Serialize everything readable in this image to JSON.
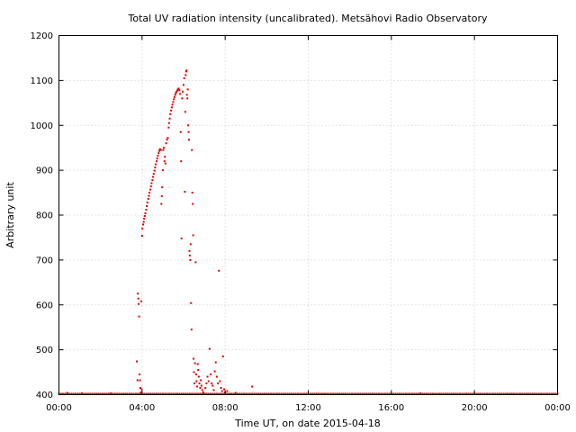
{
  "chart_data": {
    "type": "scatter",
    "title": "Total UV radiation intensity (uncalibrated). Metsähovi Radio Observatory",
    "xlabel": "Time UT, on date 2015-04-18",
    "ylabel": "Arbitrary unit",
    "xlim": [
      0,
      24
    ],
    "ylim": [
      400,
      1200
    ],
    "x_ticks": [
      0,
      4,
      8,
      12,
      16,
      20,
      24
    ],
    "x_tick_labels": [
      "00:00",
      "04:00",
      "08:00",
      "12:00",
      "16:00",
      "20:00",
      "00:00"
    ],
    "y_ticks": [
      400,
      500,
      600,
      700,
      800,
      900,
      1000,
      1100,
      1200
    ],
    "y_tick_labels": [
      "400",
      "500",
      "600",
      "700",
      "800",
      "900",
      "1000",
      "1100",
      "1200"
    ],
    "grid": true,
    "marker_color": "#e00000",
    "baseline": {
      "x_start": 0,
      "x_end": 24,
      "step": 0.1,
      "y": 401
    },
    "points": [
      [
        0.4,
        404
      ],
      [
        1.1,
        403
      ],
      [
        1.9,
        401
      ],
      [
        2.5,
        403
      ],
      [
        3.2,
        402
      ],
      [
        3.75,
        474
      ],
      [
        3.78,
        432
      ],
      [
        3.8,
        625
      ],
      [
        3.82,
        614
      ],
      [
        3.84,
        602
      ],
      [
        3.86,
        574
      ],
      [
        3.88,
        445
      ],
      [
        3.9,
        432
      ],
      [
        3.92,
        415
      ],
      [
        3.94,
        405
      ],
      [
        3.96,
        608
      ],
      [
        3.98,
        412
      ],
      [
        4.0,
        754
      ],
      [
        4.02,
        770
      ],
      [
        4.05,
        779
      ],
      [
        4.08,
        785
      ],
      [
        4.1,
        792
      ],
      [
        4.13,
        798
      ],
      [
        4.16,
        804
      ],
      [
        4.2,
        812
      ],
      [
        4.23,
        820
      ],
      [
        4.26,
        828
      ],
      [
        4.3,
        836
      ],
      [
        4.33,
        843
      ],
      [
        4.36,
        850
      ],
      [
        4.4,
        857
      ],
      [
        4.43,
        864
      ],
      [
        4.46,
        871
      ],
      [
        4.5,
        878
      ],
      [
        4.53,
        885
      ],
      [
        4.56,
        892
      ],
      [
        4.6,
        899
      ],
      [
        4.63,
        906
      ],
      [
        4.66,
        913
      ],
      [
        4.7,
        920
      ],
      [
        4.73,
        926
      ],
      [
        4.76,
        932
      ],
      [
        4.8,
        938
      ],
      [
        4.83,
        943
      ],
      [
        4.86,
        947
      ],
      [
        4.9,
        945
      ],
      [
        4.93,
        825
      ],
      [
        4.95,
        842
      ],
      [
        4.97,
        862
      ],
      [
        5.0,
        900
      ],
      [
        5.02,
        945
      ],
      [
        5.05,
        950
      ],
      [
        5.08,
        920
      ],
      [
        5.1,
        930
      ],
      [
        5.13,
        915
      ],
      [
        5.16,
        960
      ],
      [
        5.2,
        968
      ],
      [
        5.24,
        972
      ],
      [
        5.28,
        995
      ],
      [
        5.3,
        1005
      ],
      [
        5.33,
        1015
      ],
      [
        5.36,
        1025
      ],
      [
        5.4,
        1033
      ],
      [
        5.43,
        1040
      ],
      [
        5.46,
        1046
      ],
      [
        5.5,
        1052
      ],
      [
        5.53,
        1058
      ],
      [
        5.56,
        1063
      ],
      [
        5.6,
        1068
      ],
      [
        5.63,
        1072
      ],
      [
        5.66,
        1075
      ],
      [
        5.7,
        1078
      ],
      [
        5.73,
        1080
      ],
      [
        5.76,
        1082
      ],
      [
        5.8,
        1078
      ],
      [
        5.83,
        1070
      ],
      [
        5.86,
        985
      ],
      [
        5.88,
        920
      ],
      [
        5.9,
        748
      ],
      [
        5.93,
        1060
      ],
      [
        5.96,
        1075
      ],
      [
        6.0,
        1090
      ],
      [
        6.03,
        1105
      ],
      [
        6.06,
        852
      ],
      [
        6.08,
        1030
      ],
      [
        6.1,
        1112
      ],
      [
        6.12,
        1120
      ],
      [
        6.14,
        1122
      ],
      [
        6.16,
        1068
      ],
      [
        6.18,
        1060
      ],
      [
        6.2,
        1080
      ],
      [
        6.22,
        1000
      ],
      [
        6.24,
        985
      ],
      [
        6.26,
        968
      ],
      [
        6.28,
        720
      ],
      [
        6.3,
        710
      ],
      [
        6.32,
        700
      ],
      [
        6.34,
        735
      ],
      [
        6.36,
        604
      ],
      [
        6.38,
        545
      ],
      [
        6.4,
        945
      ],
      [
        6.42,
        850
      ],
      [
        6.44,
        825
      ],
      [
        6.46,
        755
      ],
      [
        6.48,
        480
      ],
      [
        6.5,
        450
      ],
      [
        6.52,
        425
      ],
      [
        6.55,
        470
      ],
      [
        6.58,
        695
      ],
      [
        6.6,
        445
      ],
      [
        6.62,
        430
      ],
      [
        6.65,
        418
      ],
      [
        6.68,
        468
      ],
      [
        6.7,
        455
      ],
      [
        6.73,
        440
      ],
      [
        6.76,
        425
      ],
      [
        6.8,
        415
      ],
      [
        6.83,
        432
      ],
      [
        6.86,
        420
      ],
      [
        6.9,
        410
      ],
      [
        6.95,
        405
      ],
      [
        7.0,
        402
      ],
      [
        7.05,
        415
      ],
      [
        7.1,
        425
      ],
      [
        7.15,
        440
      ],
      [
        7.2,
        430
      ],
      [
        7.25,
        502
      ],
      [
        7.3,
        445
      ],
      [
        7.35,
        425
      ],
      [
        7.4,
        420
      ],
      [
        7.45,
        410
      ],
      [
        7.5,
        452
      ],
      [
        7.55,
        472
      ],
      [
        7.6,
        440
      ],
      [
        7.65,
        425
      ],
      [
        7.7,
        676
      ],
      [
        7.75,
        430
      ],
      [
        7.8,
        415
      ],
      [
        7.85,
        408
      ],
      [
        7.9,
        485
      ],
      [
        7.95,
        412
      ],
      [
        8.0,
        405
      ],
      [
        8.1,
        408
      ],
      [
        8.2,
        402
      ],
      [
        8.5,
        404
      ],
      [
        9.3,
        418
      ],
      [
        12.7,
        402
      ],
      [
        13.6,
        402
      ],
      [
        15.1,
        402
      ],
      [
        17.4,
        403
      ],
      [
        19.6,
        402
      ],
      [
        21.8,
        402
      ]
    ]
  }
}
